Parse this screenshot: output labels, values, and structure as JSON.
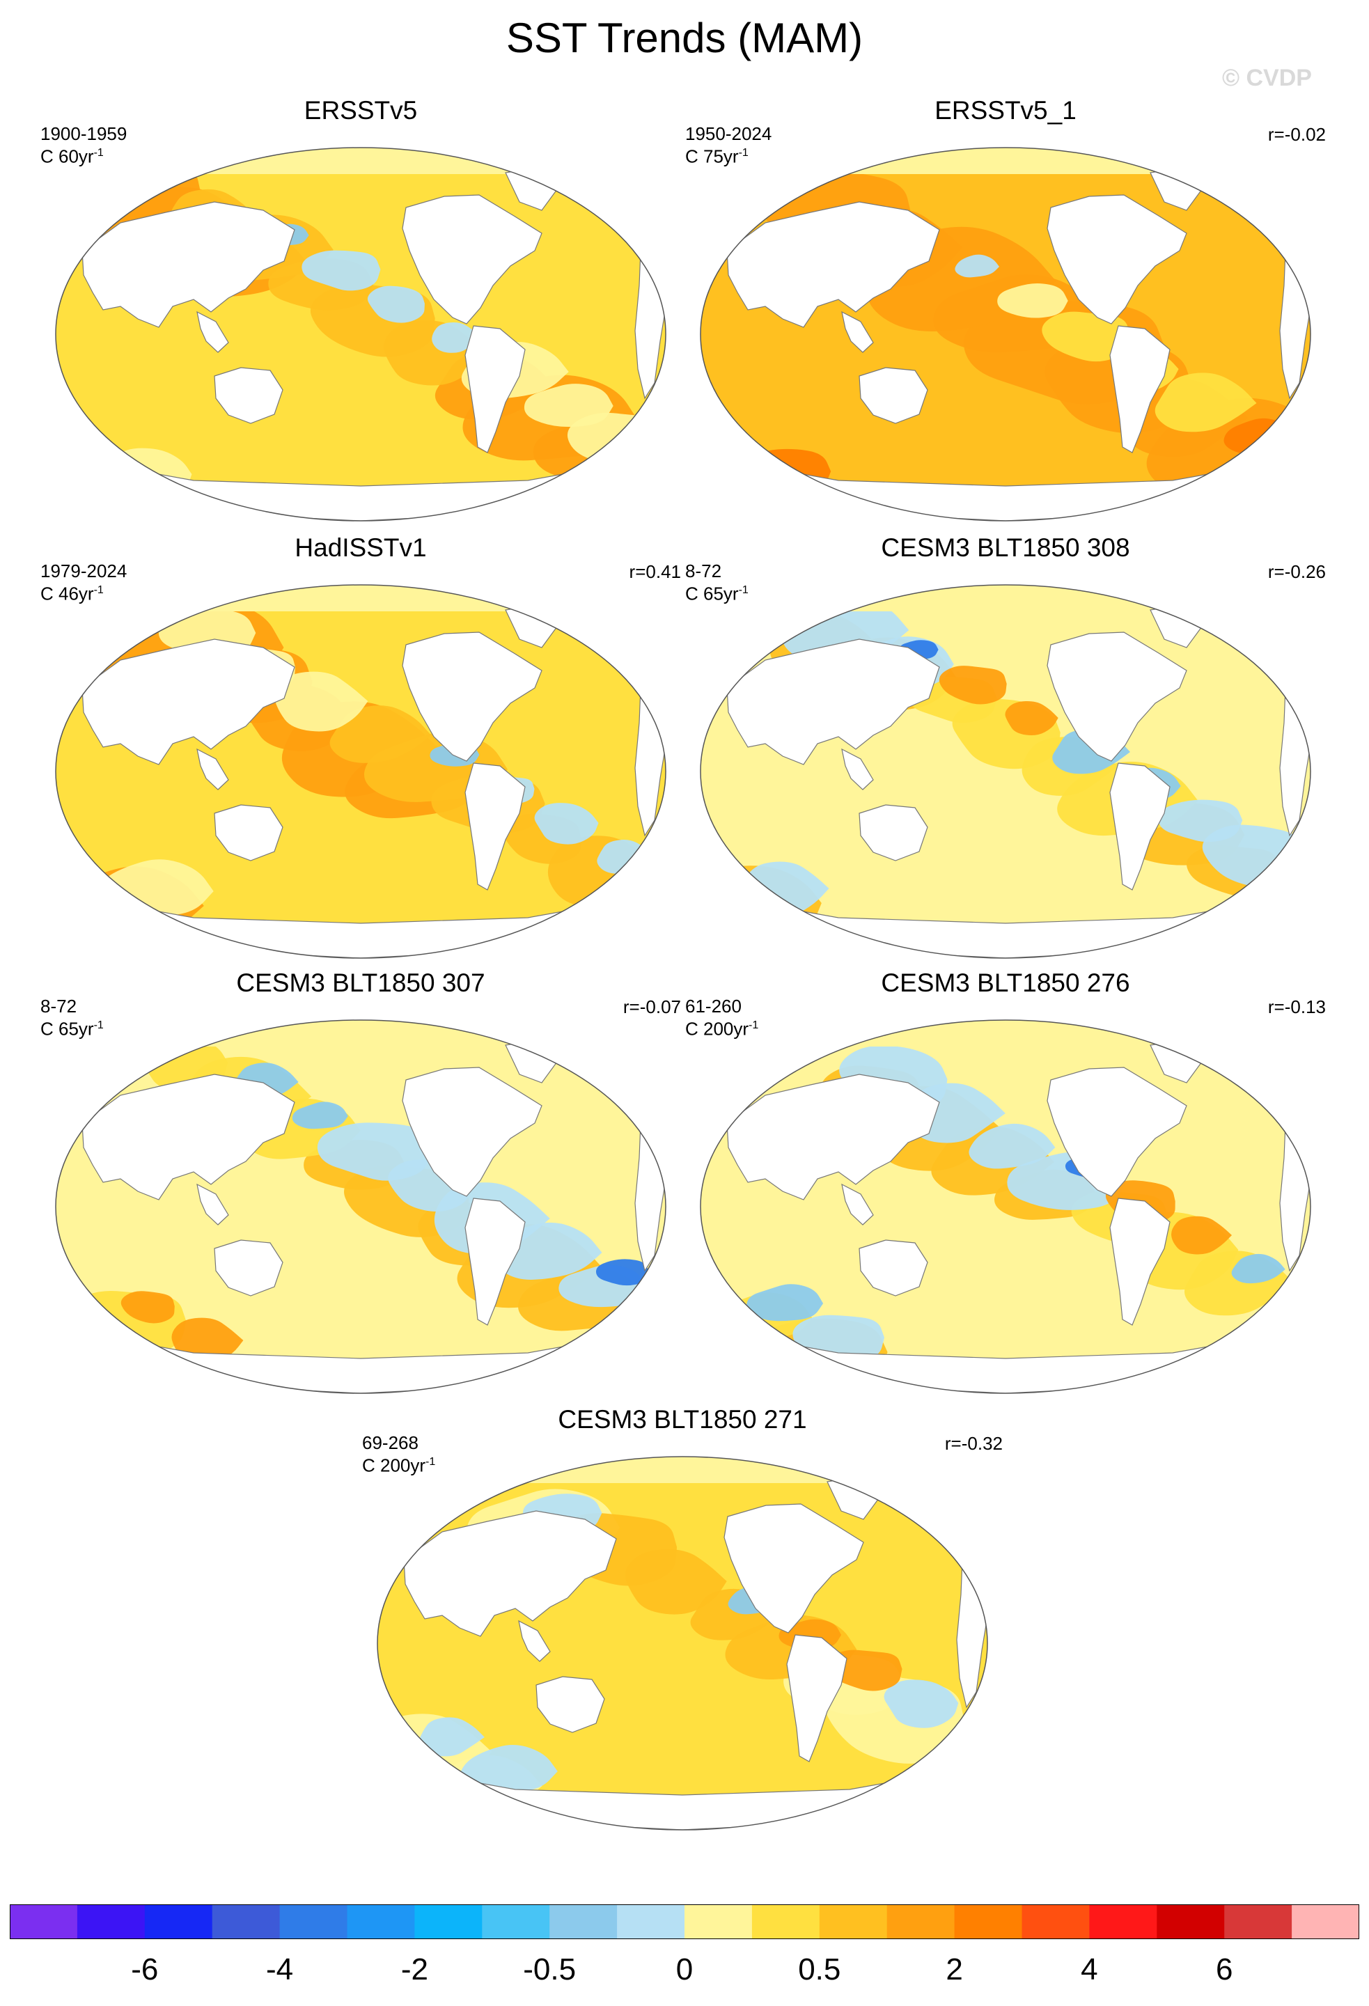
{
  "title": "SST Trends (MAM)",
  "copyright": "© CVDP",
  "panels": [
    {
      "name": "ERSSTv5",
      "period": "1900-1959",
      "trend": "C 60yr",
      "exp": "-1",
      "corr": "",
      "theme": "warm"
    },
    {
      "name": "ERSSTv5_1",
      "period": "1950-2024",
      "trend": "C 75yr",
      "exp": "-1",
      "corr": "r=-0.02",
      "theme": "hot"
    },
    {
      "name": "HadISSTv1",
      "period": "1979-2024",
      "trend": "C 46yr",
      "exp": "-1",
      "corr": "r=0.41",
      "theme": "warm"
    },
    {
      "name": "CESM3 BLT1850 308",
      "period": "8-72",
      "trend": "C 65yr",
      "exp": "-1",
      "corr": "r=-0.26",
      "theme": "mixed"
    },
    {
      "name": "CESM3 BLT1850 307",
      "period": "8-72",
      "trend": "C 65yr",
      "exp": "-1",
      "corr": "r=-0.07",
      "theme": "mixed"
    },
    {
      "name": "CESM3 BLT1850 276",
      "period": "61-260",
      "trend": "C 200yr",
      "exp": "-1",
      "corr": "r=-0.13",
      "theme": "mixed"
    },
    {
      "name": "CESM3 BLT1850 271",
      "period": "69-268",
      "trend": "C 200yr",
      "exp": "-1",
      "corr": "r=-0.32",
      "theme": "mild"
    }
  ],
  "colorbar": {
    "colors": [
      "#7b2ff0",
      "#3c14f5",
      "#1628f5",
      "#3d5ad8",
      "#2f7ce8",
      "#1e96f5",
      "#0cb4fa",
      "#48c4f5",
      "#8ccaec",
      "#b6e0f4",
      "#fff59a",
      "#ffe040",
      "#ffc020",
      "#ffa010",
      "#ff8000",
      "#ff5010",
      "#ff1818",
      "#d20000",
      "#d83838",
      "#ffb4b4"
    ],
    "labels": [
      "-6",
      "-4",
      "-2",
      "-0.5",
      "0",
      "0.5",
      "2",
      "4",
      "6"
    ]
  }
}
